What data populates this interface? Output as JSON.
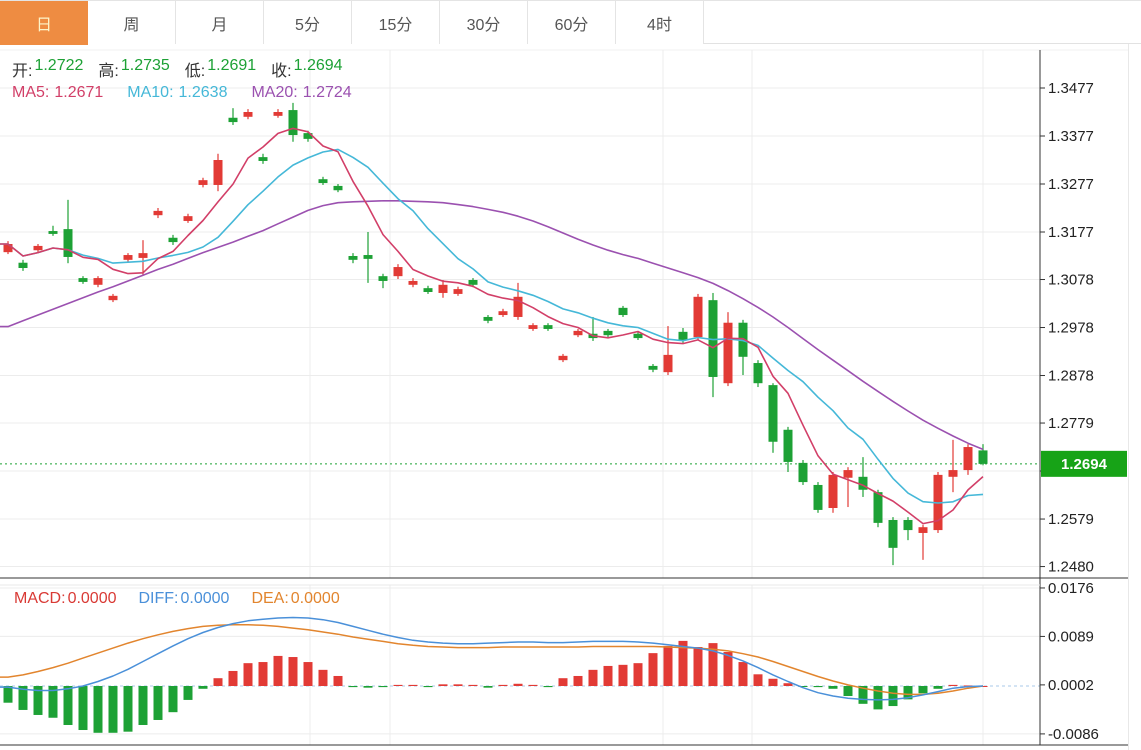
{
  "header": {
    "tabs": [
      {
        "name": "tab-day",
        "label": "日",
        "active": true
      },
      {
        "name": "tab-week",
        "label": "周",
        "active": false
      },
      {
        "name": "tab-month",
        "label": "月",
        "active": false
      },
      {
        "name": "tab-5min",
        "label": "5分",
        "active": false
      },
      {
        "name": "tab-15min",
        "label": "15分",
        "active": false
      },
      {
        "name": "tab-30min",
        "label": "30分",
        "active": false
      },
      {
        "name": "tab-60min",
        "label": "60分",
        "active": false
      },
      {
        "name": "tab-4hour",
        "label": "4时",
        "active": false
      }
    ]
  },
  "ohlc": {
    "open_label": "开:",
    "open": "1.2722",
    "high_label": "高:",
    "high": "1.2735",
    "low_label": "低:",
    "low": "1.2691",
    "close_label": "收:",
    "close": "1.2694"
  },
  "ma_legend": {
    "ma5_label": "MA5:",
    "ma5": "1.2671",
    "ma10_label": "MA10:",
    "ma10": "1.2638",
    "ma20_label": "MA20:",
    "ma20": "1.2724"
  },
  "macd_legend": {
    "macd_label": "MACD:",
    "macd": "0.0000",
    "diff_label": "DIFF:",
    "diff": "0.0000",
    "dea_label": "DEA:",
    "dea": "0.0000"
  },
  "price_badge": {
    "value": "1.2694"
  },
  "colors": {
    "up": "#e23a35",
    "down": "#1da135",
    "up_text": "#1da135",
    "badge_bg": "#17a317",
    "badge_text": "#ffffff",
    "price_line": "#1da135",
    "ma5": "#d23f68",
    "ma10": "#45b8d8",
    "ma20": "#9b51b0",
    "diff": "#4a90d9",
    "dea": "#e2852e",
    "macd_label": "#d93a35",
    "grid": "#ececec",
    "axis": "#333333",
    "axis_text": "#222222",
    "tab_active_bg": "#ee8c42",
    "tab_active_text": "#fdf4c8"
  },
  "chart_data": {
    "type": "candlestick",
    "panels": [
      "price",
      "macd"
    ],
    "legend_position": "top-left",
    "grid": true,
    "price_axis_ticks": [
      "1.3477",
      "1.3377",
      "1.3277",
      "1.3177",
      "1.3078",
      "1.2978",
      "1.2878",
      "1.2779",
      "1.2679",
      "1.2579",
      "1.2480"
    ],
    "current_price": 1.2694,
    "ma_periods": [
      5,
      10,
      20
    ],
    "candles_ohlc": [
      [
        1.3135,
        1.3158,
        1.3131,
        1.3152
      ],
      [
        1.3113,
        1.3119,
        1.3096,
        1.3102
      ],
      [
        1.3139,
        1.3152,
        1.3135,
        1.3148
      ],
      [
        1.3179,
        1.319,
        1.3169,
        1.3173
      ],
      [
        1.3183,
        1.3244,
        1.3112,
        1.3125
      ],
      [
        1.3081,
        1.3085,
        1.3069,
        1.3073
      ],
      [
        1.3067,
        1.3085,
        1.3062,
        1.3081
      ],
      [
        1.3035,
        1.3048,
        1.3031,
        1.3044
      ],
      [
        1.3119,
        1.3133,
        1.3115,
        1.3129
      ],
      [
        1.3123,
        1.316,
        1.3087,
        1.3133
      ],
      [
        1.3212,
        1.3227,
        1.3206,
        1.3221
      ],
      [
        1.3165,
        1.3171,
        1.315,
        1.3156
      ],
      [
        1.32,
        1.3215,
        1.3196,
        1.321
      ],
      [
        1.3275,
        1.329,
        1.327,
        1.3285
      ],
      [
        1.3275,
        1.334,
        1.3262,
        1.3327
      ],
      [
        1.3415,
        1.3435,
        1.34,
        1.3406
      ],
      [
        1.3417,
        1.3433,
        1.3412,
        1.3427
      ],
      [
        1.3333,
        1.334,
        1.3319,
        1.3325
      ],
      [
        1.3419,
        1.3433,
        1.3415,
        1.3427
      ],
      [
        1.3431,
        1.3446,
        1.3365,
        1.3379
      ],
      [
        1.3383,
        1.3388,
        1.3365,
        1.3371
      ],
      [
        1.3287,
        1.3292,
        1.3275,
        1.3279
      ],
      [
        1.3273,
        1.3277,
        1.326,
        1.3264
      ],
      [
        1.3127,
        1.3133,
        1.3112,
        1.3119
      ],
      [
        1.3129,
        1.3177,
        1.3071,
        1.3121
      ],
      [
        1.3085,
        1.309,
        1.306,
        1.3075
      ],
      [
        1.3085,
        1.311,
        1.3079,
        1.3104
      ],
      [
        1.3067,
        1.3081,
        1.3062,
        1.3075
      ],
      [
        1.306,
        1.3065,
        1.3048,
        1.3052
      ],
      [
        1.305,
        1.3077,
        1.304,
        1.3067
      ],
      [
        1.3048,
        1.3063,
        1.3044,
        1.3058
      ],
      [
        1.3077,
        1.3081,
        1.3062,
        1.3067
      ],
      [
        1.3,
        1.3004,
        1.2987,
        1.2992
      ],
      [
        1.3004,
        1.3017,
        1.3,
        1.3012
      ],
      [
        1.3,
        1.3071,
        1.2994,
        1.3042
      ],
      [
        1.2975,
        1.2987,
        1.2971,
        1.2983
      ],
      [
        1.2983,
        1.2987,
        1.2971,
        1.2975
      ],
      [
        1.291,
        1.2923,
        1.2906,
        1.2919
      ],
      [
        1.2962,
        1.2975,
        1.2958,
        1.2971
      ],
      [
        1.2965,
        1.3,
        1.295,
        1.2956
      ],
      [
        1.2971,
        1.2975,
        1.2956,
        1.2962
      ],
      [
        1.3019,
        1.3023,
        1.3,
        1.3004
      ],
      [
        1.2965,
        1.2969,
        1.2952,
        1.2956
      ],
      [
        1.2898,
        1.2902,
        1.2885,
        1.289
      ],
      [
        1.2885,
        1.2981,
        1.2879,
        1.2921
      ],
      [
        1.2969,
        1.2977,
        1.2946,
        1.2952
      ],
      [
        1.2958,
        1.3048,
        1.2952,
        1.3042
      ],
      [
        1.3035,
        1.305,
        1.2833,
        1.2875
      ],
      [
        1.2862,
        1.301,
        1.2856,
        1.2988
      ],
      [
        1.2988,
        1.2994,
        1.2879,
        1.2917
      ],
      [
        1.2904,
        1.291,
        1.2854,
        1.2862
      ],
      [
        1.2858,
        1.2862,
        1.2717,
        1.274
      ],
      [
        1.2765,
        1.2771,
        1.2677,
        1.2698
      ],
      [
        1.2696,
        1.2702,
        1.265,
        1.2656
      ],
      [
        1.265,
        1.2656,
        1.2592,
        1.2598
      ],
      [
        1.2602,
        1.2677,
        1.2592,
        1.2671
      ],
      [
        1.2665,
        1.2687,
        1.2604,
        1.2681
      ],
      [
        1.2667,
        1.2708,
        1.2625,
        1.264
      ],
      [
        1.2635,
        1.264,
        1.2562,
        1.2571
      ],
      [
        1.2577,
        1.2583,
        1.2483,
        1.2519
      ],
      [
        1.2577,
        1.2583,
        1.2535,
        1.2556
      ],
      [
        1.255,
        1.2567,
        1.2494,
        1.2562
      ],
      [
        1.2556,
        1.2677,
        1.255,
        1.2671
      ],
      [
        1.2667,
        1.2744,
        1.2635,
        1.2681
      ],
      [
        1.2681,
        1.2735,
        1.2671,
        1.2729
      ],
      [
        1.2722,
        1.2735,
        1.2691,
        1.2694
      ]
    ],
    "ma20_line": [
      1.298,
      1.2992,
      1.3004,
      1.3016,
      1.3028,
      1.304,
      1.3052,
      1.3063,
      1.3075,
      1.3087,
      1.3099,
      1.311,
      1.3122,
      1.3134,
      1.3145,
      1.3156,
      1.3168,
      1.318,
      1.3194,
      1.3208,
      1.3222,
      1.3232,
      1.3238,
      1.324,
      1.3241,
      1.3242,
      1.3242,
      1.3241,
      1.324,
      1.3238,
      1.3234,
      1.323,
      1.3224,
      1.3218,
      1.321,
      1.32,
      1.3188,
      1.3175,
      1.3162,
      1.315,
      1.3139,
      1.313,
      1.3122,
      1.3112,
      1.3102,
      1.3092,
      1.3082,
      1.307,
      1.3055,
      1.3038,
      1.302,
      1.3,
      1.2978,
      1.2955,
      1.2932,
      1.291,
      1.2888,
      1.2866,
      1.2845,
      1.2824,
      1.2804,
      1.2785,
      1.2768,
      1.2752,
      1.2737,
      1.2724
    ],
    "macd": {
      "axis_ticks": [
        "0.0176",
        "0.0089",
        "0.0002",
        "-0.0086"
      ],
      "histogram": [
        -0.003,
        -0.0043,
        -0.0052,
        -0.0057,
        -0.007,
        -0.0079,
        -0.0084,
        -0.0084,
        -0.0082,
        -0.007,
        -0.0061,
        -0.0047,
        -0.0025,
        -0.0005,
        0.0014,
        0.0027,
        0.0041,
        0.0043,
        0.0054,
        0.0052,
        0.0043,
        0.0029,
        0.0018,
        -0.0002,
        -0.0003,
        -0.0002,
        0.0002,
        0.0002,
        -0.0002,
        0.0003,
        0.0003,
        0.0002,
        -0.0003,
        0.0002,
        0.0004,
        0.0002,
        -0.0002,
        0.0014,
        0.0018,
        0.0029,
        0.0036,
        0.0038,
        0.0041,
        0.0059,
        0.0072,
        0.0081,
        0.007,
        0.0077,
        0.0061,
        0.0043,
        0.0021,
        0.0013,
        0.0005,
        -0.0001,
        -0.0002,
        -0.0005,
        -0.0018,
        -0.0032,
        -0.0042,
        -0.0036,
        -0.0024,
        -0.0013,
        -0.0005,
        0.0002,
        0.0001,
        0.0
      ],
      "diff_line": [
        -0.0002,
        -0.0006,
        -0.0008,
        -0.0008,
        -0.0005,
        0.0,
        0.0008,
        0.0018,
        0.003,
        0.0044,
        0.0058,
        0.0072,
        0.0085,
        0.0096,
        0.0105,
        0.0112,
        0.0117,
        0.012,
        0.0122,
        0.0123,
        0.0122,
        0.0119,
        0.0114,
        0.0107,
        0.01,
        0.0093,
        0.0087,
        0.0082,
        0.0079,
        0.0077,
        0.0076,
        0.0076,
        0.0077,
        0.0078,
        0.0079,
        0.0079,
        0.0078,
        0.0078,
        0.0079,
        0.008,
        0.008,
        0.008,
        0.0079,
        0.0077,
        0.0074,
        0.0071,
        0.0068,
        0.0063,
        0.0055,
        0.0045,
        0.0033,
        0.002,
        0.0008,
        -0.0003,
        -0.0012,
        -0.0018,
        -0.0022,
        -0.0024,
        -0.0025,
        -0.0024,
        -0.0021,
        -0.0016,
        -0.001,
        -0.0004,
        -0.0001,
        0.0
      ],
      "dea_line": [
        0.0016,
        0.002,
        0.0026,
        0.0033,
        0.0041,
        0.005,
        0.0059,
        0.0068,
        0.0077,
        0.0085,
        0.0092,
        0.0098,
        0.0103,
        0.0107,
        0.0109,
        0.011,
        0.011,
        0.0109,
        0.0107,
        0.0104,
        0.0101,
        0.0097,
        0.0093,
        0.0088,
        0.0084,
        0.008,
        0.0076,
        0.0073,
        0.0071,
        0.007,
        0.0069,
        0.0069,
        0.0069,
        0.007,
        0.007,
        0.007,
        0.007,
        0.007,
        0.007,
        0.0071,
        0.0071,
        0.0071,
        0.0071,
        0.0071,
        0.007,
        0.0069,
        0.0068,
        0.0066,
        0.0063,
        0.0058,
        0.0052,
        0.0044,
        0.0035,
        0.0026,
        0.0017,
        0.0009,
        0.0002,
        -0.0004,
        -0.0009,
        -0.0013,
        -0.0015,
        -0.0015,
        -0.0013,
        -0.0009,
        -0.0004,
        0.0
      ]
    }
  }
}
